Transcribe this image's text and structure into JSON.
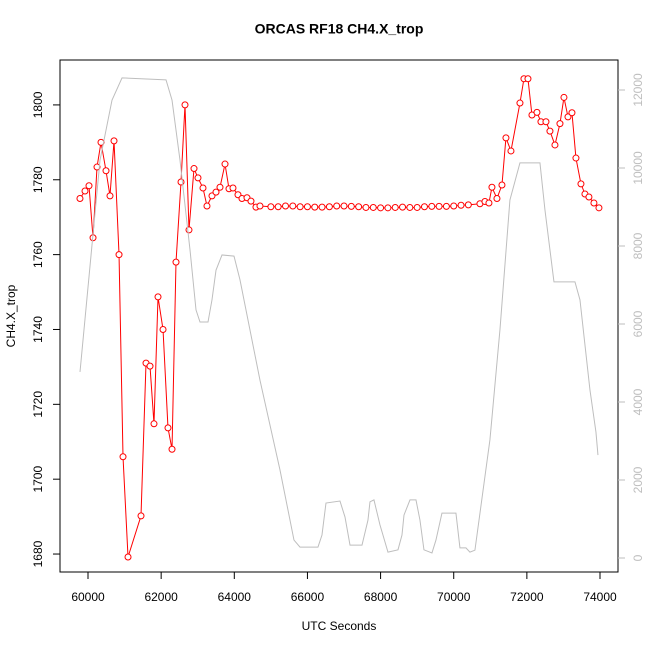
{
  "chart_data": {
    "type": "line",
    "title": "ORCAS RF18 CH4.X_trop",
    "x_label": "UTC Seconds",
    "y_label": "CH4.X_trop",
    "xlim": [
      59234,
      74492
    ],
    "xticks": [
      60000,
      62000,
      64000,
      66000,
      68000,
      70000,
      72000,
      74000
    ],
    "ylim": [
      1675.2,
      1812
    ],
    "yticks": [
      1680,
      1700,
      1720,
      1740,
      1760,
      1780,
      1800
    ],
    "y2lim": [
      -359,
      12769
    ],
    "y2ticks": [
      0,
      2000,
      4000,
      6000,
      8000,
      10000,
      12000
    ],
    "series": [
      {
        "color": "#ff0000",
        "marker": "circle",
        "x": [
          59780,
          59918,
          60027,
          60137,
          60246,
          60355,
          60492,
          60601,
          60711,
          60848,
          60957,
          61094,
          61449,
          61586,
          61695,
          61804,
          61914,
          62051,
          62187,
          62297,
          62406,
          62543,
          62652,
          62761,
          62898,
          63007,
          63144,
          63253,
          63390,
          63500,
          63609,
          63746,
          63855,
          63964,
          64101,
          64210,
          64347,
          64456,
          64593,
          64702,
          65000,
          65200,
          65400,
          65600,
          65800,
          66000,
          66200,
          66400,
          66600,
          66800,
          67000,
          67200,
          67400,
          67600,
          67800,
          68000,
          68200,
          68400,
          68600,
          68800,
          69000,
          69200,
          69400,
          69600,
          69800,
          70000,
          70200,
          70400,
          70717,
          70854,
          70963,
          71045,
          71182,
          71319,
          71428,
          71565,
          71811,
          71920,
          72030,
          72139,
          72276,
          72385,
          72522,
          72631,
          72768,
          72905,
          73014,
          73124,
          73233,
          73342,
          73479,
          73588,
          73697,
          73834,
          73971
        ],
        "values": [
          1775,
          1777,
          1778.4,
          1764.5,
          1783.4,
          1790,
          1782.4,
          1775.7,
          1790.4,
          1760,
          1706,
          1679.2,
          1690.2,
          1731,
          1730.2,
          1714.8,
          1748.7,
          1740,
          1713.7,
          1708,
          1758,
          1779.4,
          1800,
          1766.6,
          1783,
          1780.5,
          1777.8,
          1773,
          1775.7,
          1776.7,
          1778,
          1784.2,
          1777.6,
          1777.8,
          1776,
          1775,
          1775.2,
          1774.3,
          1772.7,
          1773,
          1772.8,
          1772.8,
          1773,
          1773,
          1772.8,
          1772.8,
          1772.7,
          1772.7,
          1772.8,
          1773,
          1773,
          1772.9,
          1772.8,
          1772.6,
          1772.6,
          1772.5,
          1772.5,
          1772.6,
          1772.7,
          1772.6,
          1772.6,
          1772.8,
          1772.9,
          1772.9,
          1772.9,
          1773,
          1773.2,
          1773.3,
          1773.6,
          1774.2,
          1773.8,
          1778,
          1775,
          1778.6,
          1791.2,
          1787.7,
          1800.5,
          1807,
          1807,
          1797.3,
          1798,
          1795.5,
          1795.5,
          1793,
          1789.3,
          1795,
          1802,
          1796.8,
          1797.9,
          1785.8,
          1778.9,
          1776.2,
          1775.4,
          1773.8,
          1772.5
        ]
      },
      {
        "color": "#bebebe",
        "axis": "y2",
        "x": [
          59781,
          60328,
          60656,
          60930,
          62133,
          62297,
          62515,
          62789,
          62953,
          63062,
          63281,
          63390,
          63500,
          63664,
          63992,
          64156,
          64702,
          65249,
          65632,
          65796,
          66288,
          66398,
          66507,
          66890,
          67027,
          67164,
          67492,
          67655,
          67710,
          67819,
          67983,
          68202,
          68476,
          68585,
          68640,
          68804,
          68968,
          69077,
          69186,
          69405,
          69514,
          69678,
          70061,
          70170,
          70334,
          70443,
          70580,
          70990,
          71264,
          71537,
          71811,
          72358,
          72495,
          72741,
          73315,
          73452,
          73725,
          73889,
          73944
        ],
        "values": [
          4770,
          10200,
          11740,
          12310,
          12260,
          11740,
          10200,
          7900,
          6360,
          6050,
          6050,
          6620,
          7380,
          7770,
          7740,
          7130,
          4560,
          2260,
          460,
          280,
          280,
          590,
          1410,
          1460,
          1050,
          330,
          330,
          970,
          1440,
          1490,
          850,
          150,
          210,
          590,
          1100,
          1490,
          1490,
          970,
          210,
          130,
          460,
          1150,
          1150,
          260,
          260,
          150,
          200,
          3030,
          5850,
          9180,
          10130,
          10130,
          8920,
          7080,
          7080,
          6620,
          4310,
          3230,
          2640
        ]
      }
    ]
  }
}
